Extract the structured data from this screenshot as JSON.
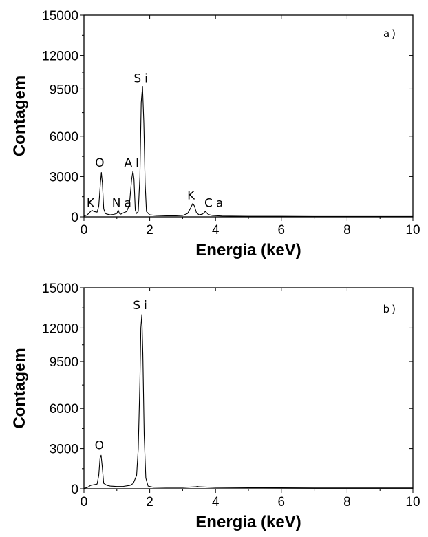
{
  "chart_data": [
    {
      "type": "line",
      "panel_label": "a)",
      "xlabel": "Energia (keV)",
      "ylabel": "Contagem",
      "xlim": [
        0,
        10
      ],
      "ylim": [
        0,
        15000
      ],
      "x_ticks": [
        "0",
        "2",
        "4",
        "6",
        "8",
        "10"
      ],
      "y_ticks": [
        "0",
        "3000",
        "6000",
        "9500",
        "12000",
        "15000"
      ],
      "grid": false,
      "series": [
        {
          "x": [
            0.0,
            0.1,
            0.2,
            0.25,
            0.3,
            0.4,
            0.45,
            0.5,
            0.53,
            0.56,
            0.6,
            0.65,
            0.7,
            0.8,
            0.9,
            1.0,
            1.04,
            1.08,
            1.12,
            1.2,
            1.3,
            1.38,
            1.45,
            1.49,
            1.52,
            1.56,
            1.6,
            1.65,
            1.7,
            1.74,
            1.78,
            1.82,
            1.86,
            1.9,
            2.0,
            2.2,
            2.5,
            2.8,
            3.0,
            3.15,
            3.25,
            3.31,
            3.36,
            3.42,
            3.5,
            3.6,
            3.69,
            3.78,
            3.9,
            4.2,
            5.0,
            6.0,
            7.0,
            8.0,
            9.0,
            10.0
          ],
          "y": [
            50,
            150,
            400,
            480,
            400,
            350,
            800,
            2500,
            3300,
            2500,
            600,
            250,
            200,
            150,
            180,
            250,
            500,
            250,
            200,
            300,
            400,
            900,
            2800,
            3400,
            2800,
            500,
            250,
            400,
            3000,
            8500,
            9700,
            7000,
            2500,
            400,
            150,
            100,
            80,
            80,
            100,
            250,
            700,
            1000,
            800,
            300,
            150,
            200,
            400,
            180,
            100,
            60,
            40,
            40,
            30,
            30,
            30,
            30
          ]
        }
      ],
      "annotations": [
        {
          "text": "K",
          "x": 0.25,
          "y": 750
        },
        {
          "text": "O",
          "x": 0.53,
          "y": 3750
        },
        {
          "text": "Na",
          "x": 1.2,
          "y": 750
        },
        {
          "text": "Al",
          "x": 1.5,
          "y": 3750
        },
        {
          "text": "Si",
          "x": 1.78,
          "y": 10000
        },
        {
          "text": "K",
          "x": 3.31,
          "y": 1300
        },
        {
          "text": "Ca",
          "x": 4.0,
          "y": 750
        }
      ]
    },
    {
      "type": "line",
      "panel_label": "b)",
      "xlabel": "Energia (keV)",
      "ylabel": "Contagem",
      "xlim": [
        0,
        10
      ],
      "ylim": [
        0,
        15000
      ],
      "x_ticks": [
        "0",
        "2",
        "4",
        "6",
        "8",
        "10"
      ],
      "y_ticks": [
        "0",
        "3000",
        "6000",
        "9500",
        "12000",
        "15000"
      ],
      "grid": false,
      "series": [
        {
          "x": [
            0.0,
            0.1,
            0.2,
            0.3,
            0.4,
            0.45,
            0.49,
            0.52,
            0.55,
            0.6,
            0.7,
            0.8,
            1.0,
            1.2,
            1.4,
            1.5,
            1.6,
            1.65,
            1.7,
            1.73,
            1.76,
            1.79,
            1.83,
            1.88,
            1.95,
            2.1,
            2.5,
            3.0,
            3.4,
            3.45,
            3.5,
            4.0,
            5.0,
            6.0,
            7.0,
            8.0,
            9.0,
            10.0
          ],
          "y": [
            30,
            100,
            250,
            300,
            350,
            1000,
            2300,
            2500,
            1800,
            400,
            250,
            200,
            170,
            180,
            250,
            400,
            1000,
            3000,
            8000,
            12000,
            13000,
            10000,
            4000,
            800,
            200,
            120,
            100,
            100,
            150,
            180,
            150,
            100,
            80,
            70,
            60,
            60,
            60,
            60
          ]
        }
      ],
      "annotations": [
        {
          "text": "O",
          "x": 0.52,
          "y": 2950
        },
        {
          "text": "Si",
          "x": 1.76,
          "y": 13400
        }
      ]
    }
  ]
}
